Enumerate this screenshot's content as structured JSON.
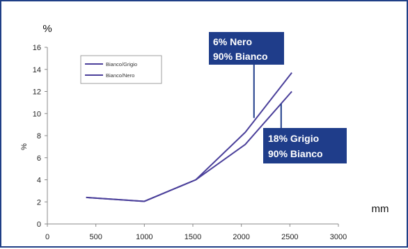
{
  "chart_data": {
    "type": "line",
    "x_unit": "mm",
    "y_unit": "%",
    "ylabel": "%",
    "xlim": [
      0,
      3000
    ],
    "ylim": [
      0,
      16
    ],
    "x_ticks": [
      0,
      500,
      1000,
      1500,
      2000,
      2500,
      3000
    ],
    "y_ticks": [
      0,
      2,
      4,
      6,
      8,
      10,
      12,
      14,
      16
    ],
    "grid": false,
    "legend_position": "top-left",
    "line_color": "#4a3f9a",
    "series": [
      {
        "name": "Bianco/Grigio",
        "x": [
          400,
          1000,
          1530,
          2040,
          2520
        ],
        "y": [
          2.4,
          2.05,
          4.0,
          8.3,
          13.7
        ]
      },
      {
        "name": "Bianco/Nero",
        "x": [
          400,
          1000,
          1530,
          2040,
          2520
        ],
        "y": [
          2.4,
          2.05,
          4.0,
          7.2,
          12.0
        ]
      }
    ],
    "annotations": [
      {
        "text": [
          "6% Nero",
          "90% Bianco"
        ],
        "fill": "#1f3d8a",
        "points_to": {
          "x": 2130,
          "y": 9.6
        }
      },
      {
        "text": [
          "18% Grigio",
          "90% Bianco"
        ],
        "fill": "#1f3d8a",
        "points_to": {
          "x": 2410,
          "y": 10.9
        }
      }
    ]
  }
}
